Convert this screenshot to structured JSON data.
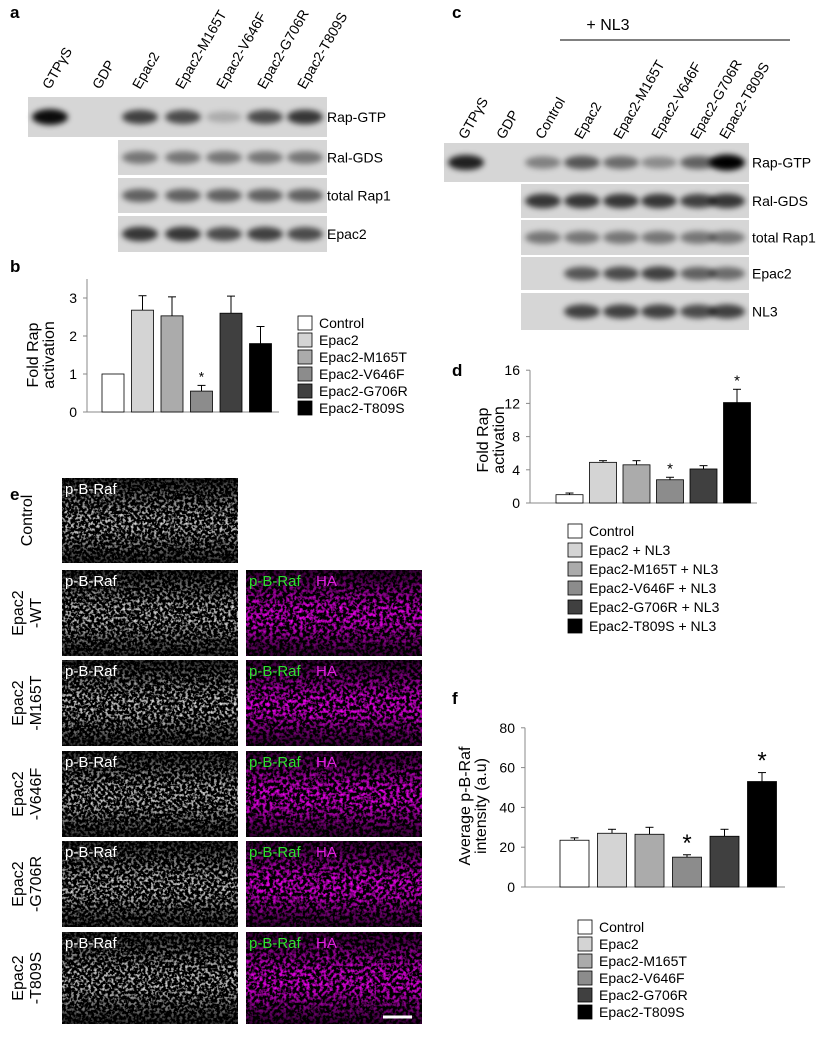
{
  "panel_letters": [
    "a",
    "b",
    "c",
    "d",
    "e",
    "f"
  ],
  "blot_a": {
    "lanes": [
      "GTPγS",
      "GDP",
      "Epac2",
      "Epac2-M165T",
      "Epac2-V646F",
      "Epac2-G706R",
      "Epac2-T809S"
    ],
    "rows": [
      "Rap-GTP",
      "Ral-GDS",
      "total Rap1",
      "Epac2"
    ]
  },
  "blot_c": {
    "header": "+ NL3",
    "lanes": [
      "GTPγS",
      "GDP",
      "Control",
      "Epac2",
      "Epac2-M165T",
      "Epac2-V646F",
      "Epac2-G706R",
      "Epac2-T809S"
    ],
    "rows": [
      "Rap-GTP",
      "Ral-GDS",
      "total Rap1",
      "Epac2",
      "NL3"
    ]
  },
  "images_e": {
    "rows": [
      [
        "Control"
      ],
      [
        "Epac2",
        "-WT"
      ],
      [
        "Epac2",
        "-M165T"
      ],
      [
        "Epac2",
        "-V646F"
      ],
      [
        "Epac2",
        "-G706R"
      ],
      [
        "Epac2",
        "-T809S"
      ]
    ],
    "channel_gray": "p-B-Raf",
    "channel_green": "p-B-Raf",
    "channel_magenta": "HA"
  },
  "chart_data": [
    {
      "type": "bar",
      "ylabel": [
        "Fold Rap",
        "activation"
      ],
      "categories": [
        "Control",
        "Epac2",
        "Epac2-M165T",
        "Epac2-V646F",
        "Epac2-G706R",
        "Epac2-T809S"
      ],
      "values": [
        1,
        2.68,
        2.53,
        0.55,
        2.6,
        1.8
      ],
      "errors": [
        null,
        0.38,
        0.5,
        0.15,
        0.45,
        0.45
      ],
      "significance": [
        null,
        null,
        null,
        "*",
        null,
        null
      ],
      "colors": [
        "#ffffff",
        "#d4d4d4",
        "#ababab",
        "#8c8c8c",
        "#404040",
        "#000000"
      ],
      "ylim": [
        0,
        3.5
      ],
      "yticks": [
        0,
        1,
        2,
        3
      ]
    },
    {
      "type": "bar",
      "ylabel": [
        "Fold Rap",
        "activation"
      ],
      "categories": [
        "Control",
        "Epac2 + NL3",
        "Epac2-M165T + NL3",
        "Epac2-V646F + NL3",
        "Epac2-G706R + NL3",
        "Epac2-T809S + NL3"
      ],
      "values": [
        1,
        4.9,
        4.6,
        2.8,
        4.1,
        12.1
      ],
      "errors": [
        0.2,
        0.2,
        0.5,
        0.3,
        0.4,
        1.6
      ],
      "significance": [
        null,
        null,
        null,
        "*",
        null,
        "*"
      ],
      "colors": [
        "#ffffff",
        "#d4d4d4",
        "#ababab",
        "#8c8c8c",
        "#404040",
        "#000000"
      ],
      "ylim": [
        0,
        16
      ],
      "yticks": [
        0,
        4,
        8,
        12,
        16
      ]
    },
    {
      "type": "bar",
      "ylabel": [
        "Average p-B-Raf",
        "intensity (a.u)"
      ],
      "categories": [
        "Control",
        "Epac2",
        "Epac2-M165T",
        "Epac2-V646F",
        "Epac2-G706R",
        "Epac2-T809S"
      ],
      "values": [
        23.5,
        27,
        26.5,
        15,
        25.5,
        53
      ],
      "errors": [
        1.2,
        2,
        3.5,
        1.2,
        3.5,
        4.5
      ],
      "significance": [
        null,
        null,
        null,
        "*",
        null,
        "*"
      ],
      "colors": [
        "#ffffff",
        "#d4d4d4",
        "#ababab",
        "#8c8c8c",
        "#404040",
        "#000000"
      ],
      "ylim": [
        0,
        80
      ],
      "yticks": [
        0,
        20,
        40,
        60,
        80
      ]
    }
  ]
}
